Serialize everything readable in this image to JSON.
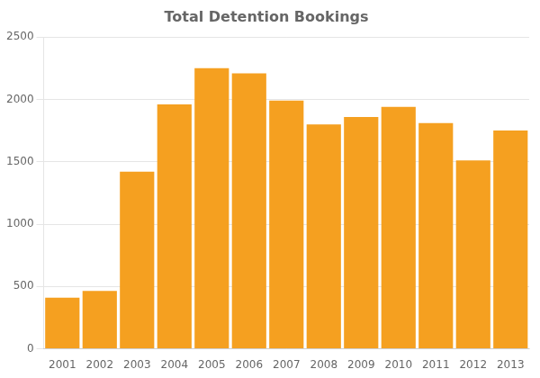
{
  "chart_data": {
    "type": "bar",
    "title": "Total Detention Bookings",
    "categories": [
      "2001",
      "2002",
      "2003",
      "2004",
      "2005",
      "2006",
      "2007",
      "2008",
      "2009",
      "2010",
      "2011",
      "2012",
      "2013"
    ],
    "values": [
      410,
      465,
      1420,
      1960,
      2250,
      2210,
      1990,
      1800,
      1860,
      1940,
      1810,
      1510,
      1750
    ],
    "color": "#F5A020",
    "ylim": [
      0,
      2500
    ],
    "yticks": [
      0,
      500,
      1000,
      1500,
      2000,
      2500
    ],
    "grid": true
  }
}
